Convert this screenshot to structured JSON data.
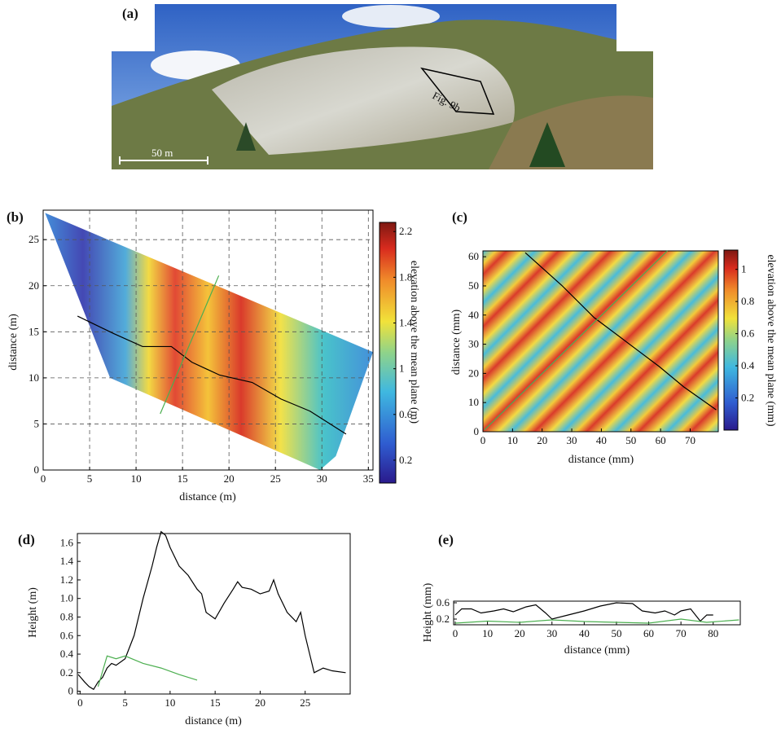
{
  "photo": {
    "label": "(a)",
    "scale_bar": "50 m",
    "annotation": "Fig. 9b"
  },
  "chart_data": [
    {
      "type": "surface",
      "label": "(b)",
      "xlabel": "distance (m)",
      "ylabel": "distance (m)",
      "colorbar_label": "elevation above the mean plane (m)",
      "xlim": [
        0,
        35.5
      ],
      "ylim": [
        0,
        28.2
      ],
      "xticks": [
        0,
        5,
        10,
        15,
        20,
        25,
        30,
        35
      ],
      "yticks": [
        0,
        5,
        10,
        15,
        20,
        25
      ],
      "clim": [
        0,
        2.28
      ],
      "cticks": [
        0.2,
        0.6,
        1,
        1.4,
        1.8,
        2.2
      ],
      "grid": true,
      "outline": {
        "x": [
          0.2,
          35.5,
          31.5,
          29.8,
          7.2
        ],
        "y": [
          27.9,
          12.8,
          1.5,
          0,
          10
        ]
      },
      "series": [
        {
          "color": "#000000",
          "x": [
            3.7,
            7.6,
            10.7,
            13.8,
            16.0,
            19.0,
            22.5,
            25.6,
            28.7,
            32.6
          ],
          "values": [
            16.7,
            14.8,
            13.4,
            13.4,
            11.7,
            10.3,
            9.5,
            7.7,
            6.4,
            3.9
          ]
        },
        {
          "color": "#4caf50",
          "x": [
            12.6,
            18.9
          ],
          "values": [
            6.1,
            21.1
          ]
        }
      ]
    },
    {
      "type": "surface",
      "label": "(c)",
      "xlabel": "distance (mm)",
      "ylabel": "distance (mm)",
      "colorbar_label": "elevation above the mean plane (mm)",
      "xlim": [
        0,
        79.5
      ],
      "ylim": [
        0,
        62
      ],
      "xticks": [
        0,
        10,
        20,
        30,
        40,
        50,
        60,
        70
      ],
      "yticks": [
        0,
        10,
        20,
        30,
        40,
        50,
        60
      ],
      "clim": [
        0,
        1.12
      ],
      "cticks": [
        0.2,
        0.4,
        0.6,
        0.8,
        1
      ],
      "grid": false,
      "outline": {
        "x": [
          0,
          79.5,
          79.5,
          0
        ],
        "y": [
          0,
          0,
          62,
          62
        ]
      },
      "series": [
        {
          "color": "#000000",
          "x": [
            14.3,
            26.6,
            37.6,
            48.6,
            59.6,
            67.8,
            78.8
          ],
          "values": [
            61.4,
            50.2,
            39.1,
            30.7,
            22.3,
            15.4,
            7.5
          ]
        },
        {
          "color": "#4caf50",
          "x": [
            0.5,
            62.3
          ],
          "values": [
            0.6,
            62
          ]
        }
      ]
    },
    {
      "type": "line",
      "label": "(d)",
      "xlabel": "distance (m)",
      "ylabel": "Height (m)",
      "xlim": [
        -0.3,
        30
      ],
      "ylim": [
        -0.03,
        1.7
      ],
      "xticks": [
        0,
        5,
        10,
        15,
        20,
        25
      ],
      "yticks": [
        0,
        0.2,
        0.4,
        0.6,
        0.8,
        {
          "value": 1,
          "label": "1.0"
        },
        1.2,
        1.4,
        1.6
      ],
      "grid": false,
      "series": [
        {
          "color": "#000000",
          "x": [
            -0.2,
            0.5,
            1,
            1.5,
            2,
            2.5,
            3,
            3.5,
            4,
            5,
            6,
            7,
            8,
            8.5,
            9,
            9.5,
            10,
            11,
            12,
            13,
            13.5,
            14,
            15,
            16,
            17,
            17.5,
            18,
            19,
            20,
            21,
            21.5,
            22,
            23,
            24,
            24.5,
            25,
            26,
            27,
            28,
            29.5
          ],
          "values": [
            0.18,
            0.1,
            0.05,
            0.02,
            0.1,
            0.15,
            0.25,
            0.3,
            0.28,
            0.35,
            0.6,
            1.0,
            1.35,
            1.55,
            1.72,
            1.68,
            1.55,
            1.35,
            1.25,
            1.1,
            1.05,
            0.85,
            0.78,
            0.95,
            1.1,
            1.18,
            1.12,
            1.1,
            1.05,
            1.08,
            1.2,
            1.05,
            0.85,
            0.75,
            0.85,
            0.6,
            0.2,
            0.25,
            0.22,
            0.2
          ]
        },
        {
          "color": "#4caf50",
          "x": [
            2,
            3,
            4,
            5,
            7,
            9,
            11,
            13
          ],
          "values": [
            0.05,
            0.38,
            0.35,
            0.38,
            0.3,
            0.25,
            0.18,
            0.12
          ]
        }
      ]
    },
    {
      "type": "line",
      "label": "(e)",
      "xlabel": "distance (mm)",
      "ylabel": "Height (mm)",
      "xlim": [
        -0.5,
        88.4
      ],
      "ylim": [
        0.06,
        0.64
      ],
      "xticks": [
        0,
        10,
        20,
        30,
        40,
        50,
        60,
        70,
        80
      ],
      "yticks": [
        0.2,
        0.6
      ],
      "grid": false,
      "series": [
        {
          "color": "#000000",
          "x": [
            0,
            2,
            5,
            8,
            12,
            15,
            18,
            22,
            25,
            28,
            30,
            35,
            40,
            45,
            50,
            55,
            58,
            62,
            65,
            68,
            70,
            73,
            76,
            78,
            80
          ],
          "values": [
            0.3,
            0.45,
            0.45,
            0.35,
            0.4,
            0.45,
            0.38,
            0.5,
            0.55,
            0.35,
            0.2,
            0.3,
            0.4,
            0.52,
            0.6,
            0.58,
            0.4,
            0.35,
            0.4,
            0.3,
            0.4,
            0.45,
            0.15,
            0.3,
            0.3
          ]
        },
        {
          "color": "#4caf50",
          "x": [
            0,
            10,
            20,
            30,
            40,
            50,
            60,
            70,
            78,
            88
          ],
          "values": [
            0.1,
            0.15,
            0.12,
            0.18,
            0.14,
            0.12,
            0.1,
            0.2,
            0.12,
            0.18
          ]
        }
      ]
    }
  ]
}
